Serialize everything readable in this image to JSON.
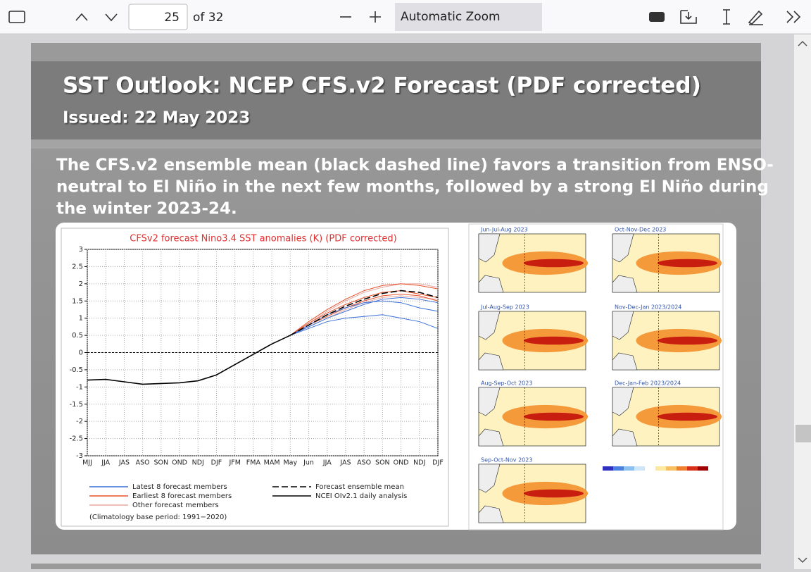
{
  "toolbar": {
    "page_number": "25",
    "page_count": "of 32",
    "zoom": "Automatic Zoom"
  },
  "slide": {
    "title": "SST Outlook: NCEP CFS.v2 Forecast (PDF corrected)",
    "issued": "Issued: 22 May 2023",
    "text": [
      "The CFS.v2 ensemble mean (black dashed line) favors a transition from ENSO-",
      "neutral to El Niño in the next few months, followed by a strong El Niño during",
      "the winter 2023-24."
    ]
  },
  "chart_data": {
    "type": "line",
    "title": "CFSv2 forecast Nino3.4 SST anomalies (K) (PDF corrected)",
    "categories": [
      "MJJ",
      "JJA",
      "JAS",
      "ASO",
      "SON",
      "OND",
      "NDJ",
      "DJF",
      "JFM",
      "FMA",
      "MAM",
      "May",
      "Jun",
      "JJA",
      "JAS",
      "ASO",
      "SON",
      "OND",
      "NDJ",
      "DJF"
    ],
    "ylim": [
      -3,
      3
    ],
    "yticks": [
      3,
      2.5,
      2,
      1.5,
      1,
      0.5,
      0,
      -0.5,
      -1,
      -1.5,
      -2,
      -2.5,
      -3
    ],
    "grid": true,
    "series": [
      {
        "name": "Latest 8 forecast members",
        "color": "#3a6fd8",
        "values": [
          [
            null,
            null,
            null,
            null,
            null,
            null,
            null,
            null,
            null,
            null,
            null,
            0.5,
            0.7,
            0.9,
            1.0,
            1.05,
            1.1,
            1.0,
            0.9,
            0.7
          ],
          [
            null,
            null,
            null,
            null,
            null,
            null,
            null,
            null,
            null,
            null,
            null,
            0.5,
            0.8,
            1.1,
            1.3,
            1.45,
            1.5,
            1.45,
            1.3,
            1.2
          ],
          [
            null,
            null,
            null,
            null,
            null,
            null,
            null,
            null,
            null,
            null,
            null,
            0.5,
            0.75,
            1.0,
            1.2,
            1.4,
            1.55,
            1.6,
            1.55,
            1.45
          ]
        ]
      },
      {
        "name": "Earliest 8 forecast members",
        "color": "#e8502a",
        "values": [
          [
            null,
            null,
            null,
            null,
            null,
            null,
            null,
            null,
            null,
            null,
            null,
            0.5,
            0.9,
            1.25,
            1.55,
            1.8,
            1.95,
            2.0,
            1.95,
            1.85
          ],
          [
            null,
            null,
            null,
            null,
            null,
            null,
            null,
            null,
            null,
            null,
            null,
            0.5,
            0.85,
            1.15,
            1.4,
            1.6,
            1.75,
            1.8,
            1.7,
            1.6
          ],
          [
            null,
            null,
            null,
            null,
            null,
            null,
            null,
            null,
            null,
            null,
            null,
            0.5,
            0.8,
            1.05,
            1.3,
            1.5,
            1.65,
            1.7,
            1.65,
            1.5
          ]
        ]
      },
      {
        "name": "Other forecast members",
        "color": "#e8a8a0",
        "values": [
          [
            null,
            null,
            null,
            null,
            null,
            null,
            null,
            null,
            null,
            null,
            null,
            0.5,
            0.85,
            1.2,
            1.5,
            1.75,
            1.9,
            2.0,
            2.0,
            1.9
          ],
          [
            null,
            null,
            null,
            null,
            null,
            null,
            null,
            null,
            null,
            null,
            null,
            0.5,
            0.75,
            1.0,
            1.25,
            1.45,
            1.6,
            1.65,
            1.6,
            1.55
          ]
        ]
      },
      {
        "name": "Forecast ensemble mean",
        "color": "#000000",
        "dashed": true,
        "values": [
          null,
          null,
          null,
          null,
          null,
          null,
          null,
          null,
          null,
          null,
          null,
          0.5,
          0.8,
          1.1,
          1.35,
          1.55,
          1.72,
          1.8,
          1.75,
          1.6
        ]
      },
      {
        "name": "NCEI OIv2.1 daily analysis",
        "color": "#000000",
        "values": [
          -0.8,
          -0.78,
          -0.85,
          -0.92,
          -0.9,
          -0.88,
          -0.82,
          -0.65,
          -0.35,
          -0.05,
          0.25,
          0.5,
          null,
          null,
          null,
          null,
          null,
          null,
          null,
          null
        ]
      }
    ],
    "note": "(Climatology base period: 1991−2020)"
  },
  "maps": {
    "panels": [
      "Jun-Jul-Aug 2023",
      "Oct-Nov-Dec 2023",
      "Jul-Aug-Sep 2023",
      "Nov-Dec-Jan 2023/2024",
      "Aug-Sep-Oct 2023",
      "Dec-Jan-Feb 2023/2024",
      "Sep-Oct-Nov 2023"
    ]
  }
}
